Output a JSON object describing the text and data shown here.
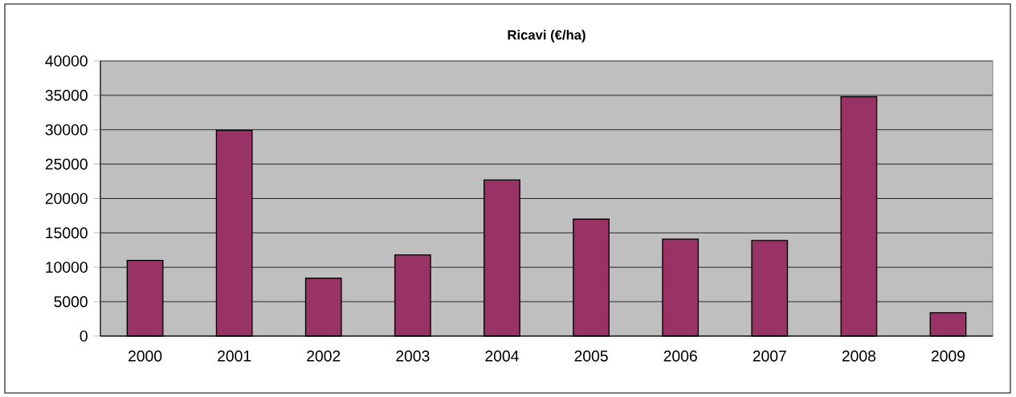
{
  "chart_data": {
    "type": "bar",
    "title": "Ricavi (€/ha)",
    "categories": [
      "2000",
      "2001",
      "2002",
      "2003",
      "2004",
      "2005",
      "2006",
      "2007",
      "2008",
      "2009"
    ],
    "values": [
      11000,
      29900,
      8400,
      11800,
      22700,
      17000,
      14100,
      13900,
      34800,
      3400
    ],
    "color": "#993366",
    "ylim": [
      0,
      40000
    ],
    "yticks": [
      0,
      5000,
      10000,
      15000,
      20000,
      25000,
      30000,
      35000,
      40000
    ],
    "grid": "y"
  }
}
